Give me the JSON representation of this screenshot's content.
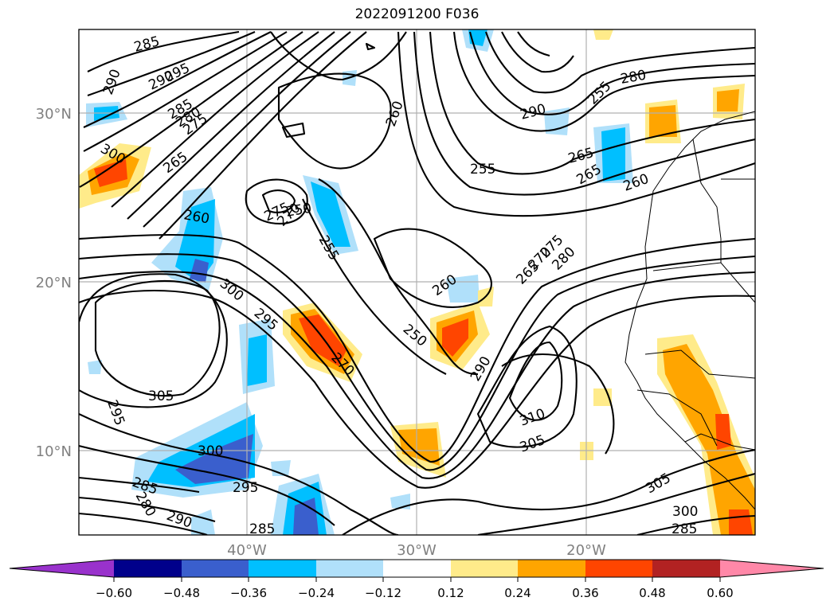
{
  "title": "2022091200 F036",
  "map": {
    "lat_labels": [
      "30°N",
      "20°N",
      "10°N"
    ],
    "lon_labels": [
      "40°W",
      "30°W",
      "20°W"
    ],
    "label_color": "#808080",
    "contour_labels": [
      "285",
      "290",
      "290",
      "295",
      "285",
      "280",
      "275",
      "300",
      "265",
      "260",
      "275",
      "270",
      "250",
      "255",
      "260",
      "255",
      "260",
      "265",
      "270",
      "275",
      "280",
      "290",
      "300",
      "295",
      "270",
      "250",
      "265",
      "280",
      "265",
      "260",
      "255",
      "290",
      "310",
      "305",
      "305",
      "295",
      "300",
      "285",
      "280",
      "290",
      "285",
      "305",
      "300",
      "295",
      "285"
    ]
  },
  "colorbar": {
    "ticks": [
      "−0.60",
      "−0.48",
      "−0.36",
      "−0.24",
      "−0.12",
      "0.12",
      "0.24",
      "0.36",
      "0.48",
      "0.60"
    ],
    "colors": [
      "#9932cc",
      "#00008b",
      "#3a5fcd",
      "#00bfff",
      "#b0e0fa",
      "#ffffff",
      "#ffeb8a",
      "#ffa500",
      "#ff4500",
      "#b22222",
      "#ff88a8"
    ]
  }
}
